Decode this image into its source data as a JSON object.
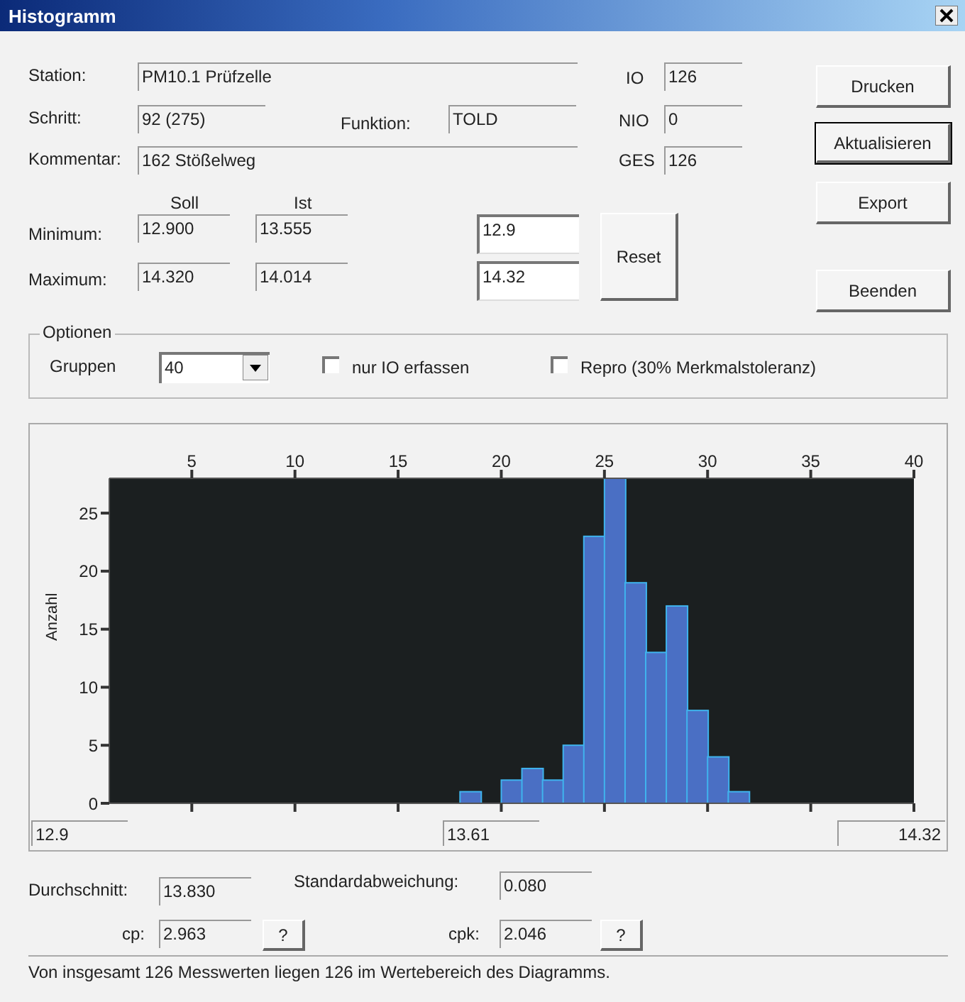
{
  "chart_data": {
    "type": "histogram",
    "title": "Histogramm",
    "ylabel": "Anzahl",
    "bins": [
      1,
      2,
      3,
      4,
      5,
      6,
      7,
      8,
      9,
      10,
      11,
      12,
      13,
      14,
      15,
      16,
      17,
      18,
      19,
      20,
      21,
      22,
      23,
      24,
      25,
      26,
      27,
      28,
      29,
      30,
      31,
      32,
      33,
      34,
      35,
      36,
      37,
      38,
      39,
      40
    ],
    "values": [
      0,
      0,
      0,
      0,
      0,
      0,
      0,
      0,
      0,
      0,
      0,
      0,
      0,
      0,
      0,
      0,
      0,
      1,
      0,
      2,
      3,
      2,
      5,
      23,
      28,
      19,
      13,
      17,
      8,
      4,
      1,
      0,
      0,
      0,
      0,
      0,
      0,
      0,
      0
    ],
    "color": "#4a6fc4",
    "xlim": [
      1,
      40
    ],
    "xticks": [
      5,
      10,
      15,
      20,
      25,
      30,
      35,
      40
    ],
    "ylim": [
      0,
      28
    ],
    "yticks": [
      0,
      5,
      10,
      15,
      20,
      25
    ],
    "annotations": [
      "Station:",
      "PM10.1 Prüfzelle",
      "Schritt:",
      "92 (275)",
      "Funktion:",
      "TOLD",
      "Kommentar:",
      "162 Stößelweg",
      "IO",
      "126",
      "NIO",
      "0",
      "GES",
      "126",
      "Soll",
      "Ist",
      "Minimum:",
      "12.900",
      "13.555",
      "Maximum:",
      "14.320",
      "14.014",
      "12.9",
      "14.32",
      "Reset",
      "Drucken",
      "Aktualisieren",
      "Export",
      "Beenden",
      "Optionen",
      "Gruppen",
      "40",
      "nur IO erfassen",
      "Repro (30% Merkmalstoleranz)",
      "12.9",
      "13.61",
      "14.32",
      "Durchschnitt:",
      "13.830",
      "Standardabweichung:",
      "0.080",
      "cp:",
      "2.963",
      "?",
      "cpk:",
      "2.046",
      "?",
      "Von insgesamt 126 Messwerten liegen 126 im Wertebereich des Diagramms."
    ]
  }
}
